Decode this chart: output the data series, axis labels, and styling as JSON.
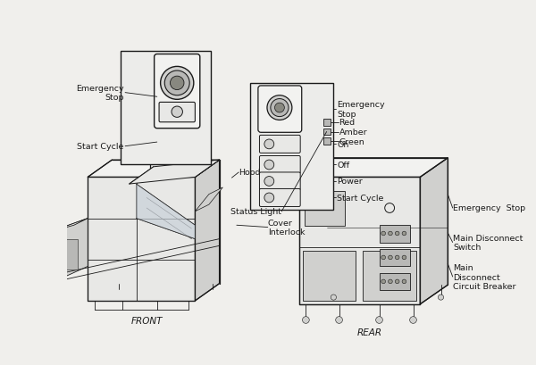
{
  "bg_color": "#f0efec",
  "line_color": "#1a1a1a",
  "face_light": "#e8e8e6",
  "face_mid": "#d0d0ce",
  "face_dark": "#b8b8b6",
  "face_white": "#f2f2f0",
  "panel_bg": "#ececea",
  "annotations": {
    "emergency_stop_left": "Emergency\nStop",
    "start_cycle_left": "Start Cycle",
    "hood": "Hood",
    "cover_interlock": "Cover\nInterlock",
    "front_label": "FRONT",
    "status_light": "Status Light",
    "red": "Red",
    "amber": "Amber",
    "green": "Green",
    "emergency_stop_right": "Emergency  Stop",
    "main_disconnect_switch": "Main Disconnect\nSwitch",
    "rear_label": "REAR",
    "main_disconnect_cb": "Main\nDisconnect\nCircuit Breaker",
    "emergency_stop_panel": "Emergency\nStop",
    "on": "On",
    "off": "Off",
    "power": "Power",
    "start_cycle_panel": "Start Cycle"
  }
}
